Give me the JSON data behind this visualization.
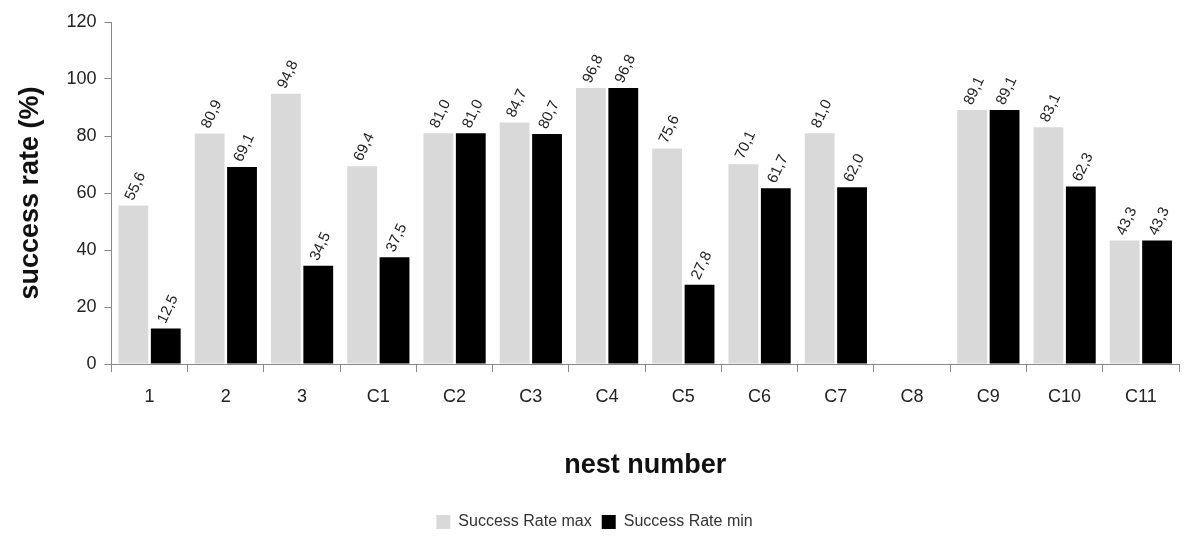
{
  "chart_data": {
    "type": "bar",
    "xlabel": "nest number",
    "ylabel": "success rate (%)",
    "categories": [
      "1",
      "2",
      "3",
      "C1",
      "C2",
      "C3",
      "C4",
      "C5",
      "C6",
      "C7",
      "C8",
      "C9",
      "C10",
      "C11"
    ],
    "series": [
      {
        "name": "Success Rate max",
        "color": "#d9d9d9",
        "values": [
          55.6,
          80.9,
          94.8,
          69.4,
          81.0,
          84.7,
          96.8,
          75.6,
          70.1,
          81.0,
          null,
          89.1,
          83.1,
          43.3
        ],
        "value_labels": [
          "55,6",
          "80,9",
          "94,8",
          "69,4",
          "81,0",
          "84,7",
          "96,8",
          "75,6",
          "70,1",
          "81,0",
          null,
          "89,1",
          "83,1",
          "43,3"
        ]
      },
      {
        "name": "Success Rate min",
        "color": "#000000",
        "values": [
          12.5,
          69.1,
          34.5,
          37.5,
          81.0,
          80.7,
          96.8,
          27.8,
          61.7,
          62.0,
          null,
          89.1,
          62.3,
          43.3
        ],
        "value_labels": [
          "12,5",
          "69,1",
          "34,5",
          "37,5",
          "81,0",
          "80,7",
          "96,8",
          "27,8",
          "61,7",
          "62,0",
          null,
          "89,1",
          "62,3",
          "43,3"
        ]
      }
    ],
    "ylim": [
      0,
      120
    ],
    "yticks": [
      0,
      20,
      40,
      60,
      80,
      100,
      120
    ],
    "legend": "bottom"
  }
}
